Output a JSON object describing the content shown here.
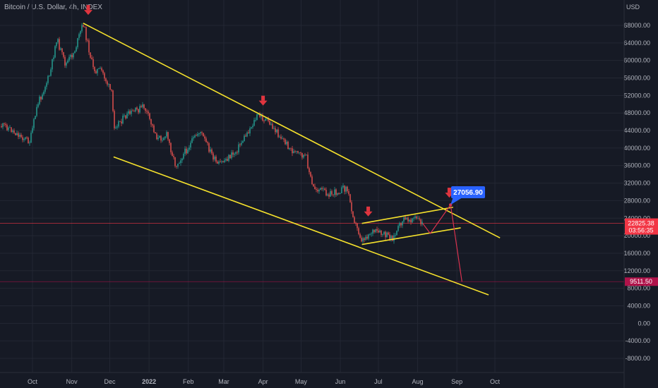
{
  "header": {
    "title": "Bitcoin / U.S. Dollar, 4h, INDEX",
    "currency": "USD"
  },
  "colors": {
    "background": "#161a25",
    "grid": "#232733",
    "axis_text": "#b2b5be",
    "candle_up": "#26a69a",
    "candle_down": "#ef5350",
    "trendline": "#f5e12c",
    "projection": "#d8324f",
    "arrow": "#e0353f",
    "target_label_bg": "#2962ff",
    "price_label_bg": "#f23645",
    "support_label_bg": "#b0134a"
  },
  "labels": {
    "target_price": "27056.90",
    "current_price": "22825.38",
    "countdown": "03:56:35",
    "support_price": "9511.50"
  },
  "chart_data": {
    "type": "candlestick",
    "title": "Bitcoin / U.S. Dollar, 4h, INDEX",
    "ylabel": "USD",
    "ylim": [
      -10000,
      76000
    ],
    "grid": true,
    "x_ticks": [
      "Oct",
      "Nov",
      "Dec",
      "2022",
      "Feb",
      "Mar",
      "Apr",
      "May",
      "Jun",
      "Jul",
      "Aug",
      "Sep",
      "Oct"
    ],
    "y_ticks": [
      "68000.00",
      "64000.00",
      "60000.00",
      "56000.00",
      "52000.00",
      "48000.00",
      "44000.00",
      "40000.00",
      "36000.00",
      "32000.00",
      "28000.00",
      "24000.00",
      "20000.00",
      "16000.00",
      "12000.00",
      "8000.00",
      "4000.00",
      "0.00",
      "-4000.00",
      "-8000.00"
    ],
    "price_path": [
      {
        "date": "2021-09-10",
        "price": 45000
      },
      {
        "date": "2021-09-20",
        "price": 43000
      },
      {
        "date": "2021-09-29",
        "price": 41500
      },
      {
        "date": "2021-10-05",
        "price": 50000
      },
      {
        "date": "2021-10-15",
        "price": 57000
      },
      {
        "date": "2021-10-20",
        "price": 65000
      },
      {
        "date": "2021-10-27",
        "price": 59000
      },
      {
        "date": "2021-11-03",
        "price": 62000
      },
      {
        "date": "2021-11-10",
        "price": 68500
      },
      {
        "date": "2021-11-18",
        "price": 58000
      },
      {
        "date": "2021-11-25",
        "price": 57500
      },
      {
        "date": "2021-12-03",
        "price": 52000
      },
      {
        "date": "2021-12-04",
        "price": 45000
      },
      {
        "date": "2021-12-15",
        "price": 47500
      },
      {
        "date": "2021-12-28",
        "price": 49500
      },
      {
        "date": "2022-01-08",
        "price": 42000
      },
      {
        "date": "2022-01-15",
        "price": 43000
      },
      {
        "date": "2022-01-22",
        "price": 36000
      },
      {
        "date": "2022-02-10",
        "price": 44000
      },
      {
        "date": "2022-02-24",
        "price": 36000
      },
      {
        "date": "2022-03-10",
        "price": 39000
      },
      {
        "date": "2022-03-28",
        "price": 47500
      },
      {
        "date": "2022-04-05",
        "price": 46000
      },
      {
        "date": "2022-04-25",
        "price": 39000
      },
      {
        "date": "2022-05-05",
        "price": 38000
      },
      {
        "date": "2022-05-10",
        "price": 31000
      },
      {
        "date": "2022-05-25",
        "price": 29500
      },
      {
        "date": "2022-06-06",
        "price": 31000
      },
      {
        "date": "2022-06-13",
        "price": 22500
      },
      {
        "date": "2022-06-18",
        "price": 19000
      },
      {
        "date": "2022-06-26",
        "price": 21000
      },
      {
        "date": "2022-07-13",
        "price": 19500
      },
      {
        "date": "2022-07-20",
        "price": 23500
      },
      {
        "date": "2022-07-30",
        "price": 24000
      },
      {
        "date": "2022-08-05",
        "price": 22800
      }
    ],
    "trendlines": [
      {
        "name": "upper channel",
        "from": {
          "date": "2021-11-10",
          "price": 68500
        },
        "to": {
          "date": "2022-10-05",
          "price": 19500
        }
      },
      {
        "name": "lower channel",
        "from": {
          "date": "2021-12-04",
          "price": 38000
        },
        "to": {
          "date": "2022-09-26",
          "price": 6500
        }
      },
      {
        "name": "wedge top",
        "from": {
          "date": "2022-06-18",
          "price": 22800
        },
        "to": {
          "date": "2022-08-29",
          "price": 26500
        }
      },
      {
        "name": "wedge bottom",
        "from": {
          "date": "2022-06-18",
          "price": 18000
        },
        "to": {
          "date": "2022-09-04",
          "price": 21800
        }
      }
    ],
    "projection": [
      {
        "date": "2022-08-05",
        "price": 22800
      },
      {
        "date": "2022-08-11",
        "price": 20500
      },
      {
        "date": "2022-08-27",
        "price": 27056.9
      },
      {
        "date": "2022-09-05",
        "price": 9511.5
      }
    ],
    "arrows": [
      {
        "date": "2021-11-14",
        "price": 71200
      },
      {
        "date": "2022-04-01",
        "price": 50500
      },
      {
        "date": "2022-06-23",
        "price": 25200
      },
      {
        "date": "2022-08-26",
        "price": 29500
      }
    ],
    "horizontal_lines": [
      {
        "price": 22825.38
      },
      {
        "price": 9511.5
      }
    ]
  }
}
